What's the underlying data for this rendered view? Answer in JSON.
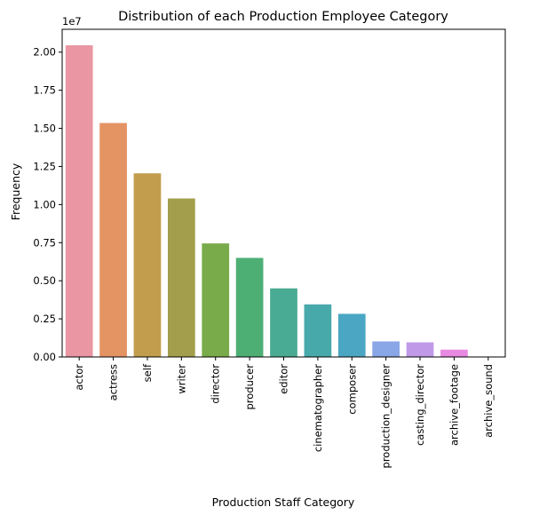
{
  "chart_data": {
    "type": "bar",
    "title": "Distribution of each Production Employee Category",
    "xlabel": "Production Staff Category",
    "ylabel": "Frequency",
    "y_offset_label": "1e7",
    "y_scale": 10000000,
    "ylim": [
      0,
      21500000
    ],
    "yticks": [
      0,
      2500000,
      5000000,
      7500000,
      10000000,
      12500000,
      15000000,
      17500000,
      20000000
    ],
    "ytick_labels": [
      "0.00",
      "0.25",
      "0.50",
      "0.75",
      "1.00",
      "1.25",
      "1.50",
      "1.75",
      "2.00"
    ],
    "grid": false,
    "categories": [
      "actor",
      "actress",
      "self",
      "writer",
      "director",
      "producer",
      "editor",
      "cinematographer",
      "composer",
      "production_designer",
      "casting_director",
      "archive_footage",
      "archive_sound"
    ],
    "values": [
      20450000,
      15350000,
      12050000,
      10400000,
      7450000,
      6500000,
      4500000,
      3450000,
      2830000,
      1020000,
      960000,
      480000,
      15000
    ],
    "colors": [
      "#ea96a3",
      "#e49363",
      "#c29d4e",
      "#a29e4b",
      "#7aab4a",
      "#4eaf75",
      "#4aab94",
      "#48a9aa",
      "#4ba6c4",
      "#89a6e6",
      "#c09ae9",
      "#e88ae1",
      "#e98dc3"
    ]
  }
}
